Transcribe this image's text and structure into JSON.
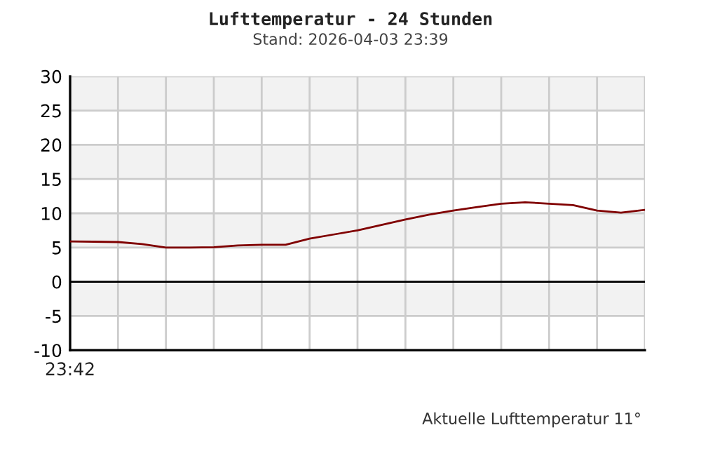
{
  "chart_data": {
    "type": "line",
    "title": "Lufttemperatur - 24 Stunden",
    "subtitle": "Stand: 2026-04-03 23:39",
    "annotations": [
      "23:42",
      "Aktuelle Lufttemperatur 11°"
    ],
    "categories": [
      null,
      null,
      null,
      null,
      null,
      null,
      null,
      null,
      null,
      null,
      null,
      null,
      null,
      null,
      null,
      null,
      null,
      null,
      null,
      null,
      null,
      null,
      null,
      null,
      null
    ],
    "series": [
      {
        "color": "#800000",
        "values": [
          5.9,
          5.85,
          5.8,
          5.5,
          5.0,
          5.0,
          5.05,
          5.3,
          5.4,
          5.4,
          6.3,
          6.9,
          7.5,
          8.3,
          9.1,
          9.8,
          10.4,
          10.9,
          11.4,
          11.6,
          11.4,
          11.2,
          10.4,
          10.1,
          10.5
        ]
      }
    ],
    "ylim": [
      -10,
      30
    ],
    "yticks": [
      -10,
      -5,
      0,
      5,
      10,
      15,
      20,
      25,
      30
    ],
    "grid": true,
    "marker": "none",
    "line_style": "solid",
    "ref_lines": [
      {
        "axis": "y",
        "value": 0,
        "color": "#000000"
      }
    ],
    "bands": [
      {
        "axis": "y",
        "from": 25,
        "to": 30,
        "color": "#f2f2f2"
      },
      {
        "axis": "y",
        "from": 15,
        "to": 20,
        "color": "#f2f2f2"
      },
      {
        "axis": "y",
        "from": 5,
        "to": 10,
        "color": "#f2f2f2"
      },
      {
        "axis": "y",
        "from": -5,
        "to": 0,
        "color": "#f2f2f2"
      }
    ]
  }
}
